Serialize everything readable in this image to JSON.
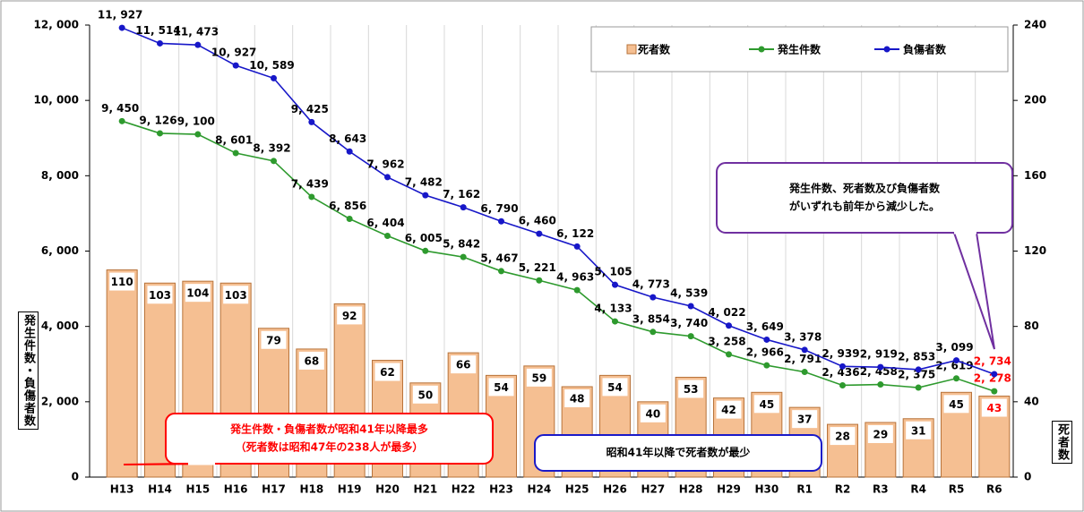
{
  "chart_data": {
    "type": "bar_line",
    "categories": [
      "H13",
      "H14",
      "H15",
      "H16",
      "H17",
      "H18",
      "H19",
      "H20",
      "H21",
      "H22",
      "H23",
      "H24",
      "H25",
      "H26",
      "H27",
      "H28",
      "H29",
      "H30",
      "R1",
      "R2",
      "R3",
      "R4",
      "R5",
      "R6"
    ],
    "series": [
      {
        "name": "死者数",
        "type": "bar",
        "axis": "y2",
        "color": "#f5bf92",
        "values": [
          110,
          103,
          104,
          103,
          79,
          68,
          92,
          62,
          50,
          66,
          54,
          59,
          48,
          54,
          40,
          53,
          42,
          45,
          37,
          28,
          29,
          31,
          45,
          43
        ]
      },
      {
        "name": "発生件数",
        "type": "line",
        "axis": "y",
        "color": "#2e9a2e",
        "values": [
          9450,
          9126,
          9100,
          8601,
          8392,
          7439,
          6856,
          6404,
          6005,
          5842,
          5467,
          5221,
          4963,
          4133,
          3854,
          3740,
          3258,
          2966,
          2791,
          2436,
          2458,
          2375,
          2619,
          2278
        ],
        "value_labels": [
          "9, 450",
          "9, 126",
          "9, 100",
          "8, 601",
          "8, 392",
          "7, 439",
          "6, 856",
          "6, 404",
          "6, 005",
          "5, 842",
          "5, 467",
          "5, 221",
          "4, 963",
          "4, 133",
          "3, 854",
          "3, 740",
          "3, 258",
          "2, 966",
          "2, 791",
          "2, 436",
          "2, 458",
          "2, 375",
          "2, 619",
          "2, 278"
        ]
      },
      {
        "name": "負傷者数",
        "type": "line",
        "axis": "y",
        "color": "#1717c8",
        "values": [
          11927,
          11514,
          11473,
          10927,
          10589,
          9425,
          8643,
          7962,
          7482,
          7162,
          6790,
          6460,
          6122,
          5105,
          4773,
          4539,
          4022,
          3649,
          3378,
          2939,
          2919,
          2853,
          3099,
          2734
        ],
        "value_labels": [
          "11, 927",
          "11, 514",
          "11, 473",
          "10, 927",
          "10, 589",
          "9, 425",
          "8, 643",
          "7, 962",
          "7, 482",
          "7, 162",
          "6, 790",
          "6, 460",
          "6, 122",
          "5, 105",
          "4, 773",
          "4, 539",
          "4, 022",
          "3, 649",
          "3, 378",
          "2, 939",
          "2, 919",
          "2, 853",
          "3, 099",
          "2, 734"
        ]
      }
    ],
    "ylim": [
      0,
      12000
    ],
    "yticks": [
      0,
      {
        "value": 2000,
        "label": "2, 000"
      },
      {
        "value": 4000,
        "label": "4, 000"
      },
      {
        "value": 6000,
        "label": "6, 000"
      },
      {
        "value": 8000,
        "label": "8, 000"
      },
      {
        "value": 10000,
        "label": "10, 000"
      },
      {
        "value": 12000,
        "label": "12, 000"
      }
    ],
    "y2lim": [
      0,
      240
    ],
    "y2ticks": [
      0,
      40,
      80,
      120,
      160,
      200,
      240
    ],
    "ylabel": "発生件数・負傷者数",
    "y2label": "死者数",
    "highlight_color": "#ff0000",
    "annotations": [
      {
        "lines": [
          "発生件数・負傷者数が昭和41年以降最多",
          "（死者数は昭和47年の238人が最多）"
        ],
        "color": "#ff0000"
      },
      {
        "lines": [
          "昭和41年以降で死者数が最少"
        ],
        "color": "#1a1ac8"
      },
      {
        "lines": [
          "発生件数、死者数及び負傷者数",
          "がいずれも前年から減少した。"
        ],
        "color": "#7030a0"
      }
    ]
  }
}
